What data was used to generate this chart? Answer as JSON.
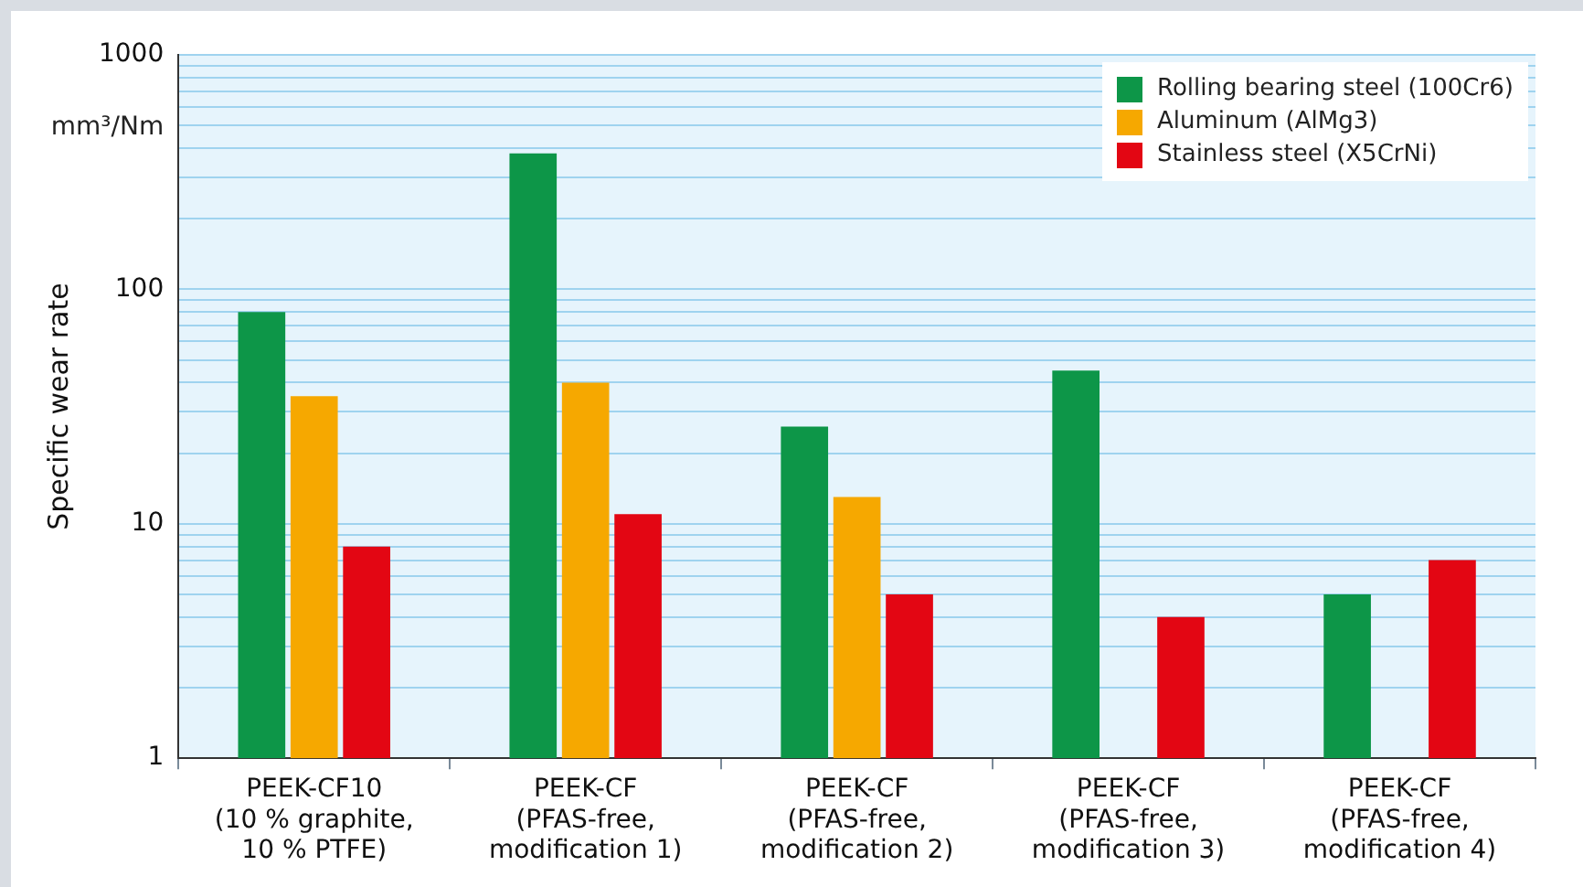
{
  "chart_data": {
    "type": "bar",
    "ylabel": "Specific wear rate",
    "annotations": [
      "mm³/Nm"
    ],
    "categories": [
      "PEEK-CF10\n(10 % graphite,\n10 % PTFE)",
      "PEEK-CF\n(PFAS-free,\nmodification 1)",
      "PEEK-CF\n(PFAS-free,\nmodification 2)",
      "PEEK-CF\n(PFAS-free,\nmodification 3)",
      "PEEK-CF\n(PFAS-free,\nmodification 4)"
    ],
    "series": [
      {
        "name": "Rolling bearing steel (100Cr6)",
        "color": "#0d9648",
        "values": [
          80,
          380,
          26,
          45,
          5
        ]
      },
      {
        "name": "Aluminum (AlMg3)",
        "color": "#f6a800",
        "values": [
          35,
          40,
          13,
          null,
          null
        ]
      },
      {
        "name": "Stainless steel (X5CrNi)",
        "color": "#e30613",
        "values": [
          8,
          11,
          5,
          4,
          7
        ]
      }
    ],
    "log": "y",
    "ylim": [
      1,
      1000
    ],
    "yticks": [
      1,
      {
        "value": 2,
        "label": null
      },
      {
        "value": 3,
        "label": null
      },
      {
        "value": 4,
        "label": null
      },
      {
        "value": 5,
        "label": null
      },
      {
        "value": 6,
        "label": null
      },
      {
        "value": 7,
        "label": null
      },
      {
        "value": 8,
        "label": null
      },
      {
        "value": 9,
        "label": null
      },
      10,
      {
        "value": 20,
        "label": null
      },
      {
        "value": 30,
        "label": null
      },
      {
        "value": 40,
        "label": null
      },
      {
        "value": 50,
        "label": null
      },
      {
        "value": 60,
        "label": null
      },
      {
        "value": 70,
        "label": null
      },
      {
        "value": 80,
        "label": null
      },
      {
        "value": 90,
        "label": null
      },
      100,
      {
        "value": 200,
        "label": null
      },
      {
        "value": 300,
        "label": null
      },
      {
        "value": 400,
        "label": null
      },
      {
        "value": 500,
        "label": null
      },
      {
        "value": 600,
        "label": null
      },
      {
        "value": 700,
        "label": null
      },
      {
        "value": 800,
        "label": null
      },
      {
        "value": 900,
        "label": null
      },
      1000
    ],
    "grid": "y",
    "legend": "top right"
  }
}
